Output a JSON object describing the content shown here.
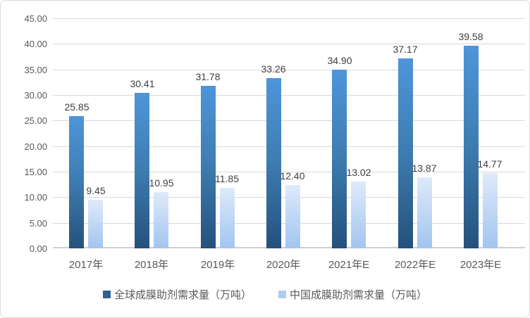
{
  "chart_data": {
    "type": "bar",
    "title": "",
    "categories": [
      "2017年",
      "2018年",
      "2019年",
      "2020年",
      "2021年E",
      "2022年E",
      "2023年E"
    ],
    "series": [
      {
        "name": "全球成膜助剂需求量（万吨）",
        "values": [
          25.85,
          30.41,
          31.78,
          33.26,
          34.9,
          37.17,
          39.58
        ],
        "bar_color_top": "#4e95da",
        "bar_color_bottom": "#24517c",
        "legend_color": "#2e628f"
      },
      {
        "name": "中国成膜助剂需求量（万吨）",
        "values": [
          9.45,
          10.95,
          11.85,
          12.4,
          13.02,
          13.87,
          14.77
        ],
        "bar_color_top": "#dfeafa",
        "bar_color_bottom": "#a2c5ef",
        "legend_color": "#aecdf1"
      }
    ],
    "xlabel": "",
    "ylabel": "",
    "ylim": [
      0,
      45
    ],
    "ytick_step": 5,
    "ytick_labels": [
      "45.00",
      "40.00",
      "35.00",
      "30.00",
      "25.00",
      "20.00",
      "15.00",
      "10.00",
      "5.00",
      "0.00"
    ],
    "value_label_decimals": 2,
    "grid": true,
    "legend_position": "bottom"
  },
  "colors": {
    "gridline": "#d9d9d9",
    "axis_line": "#cfcfcf",
    "axis_text": "#595959",
    "data_label_text": "#3f3f3f",
    "background": "#ffffff",
    "border": "#d9d9d9"
  }
}
